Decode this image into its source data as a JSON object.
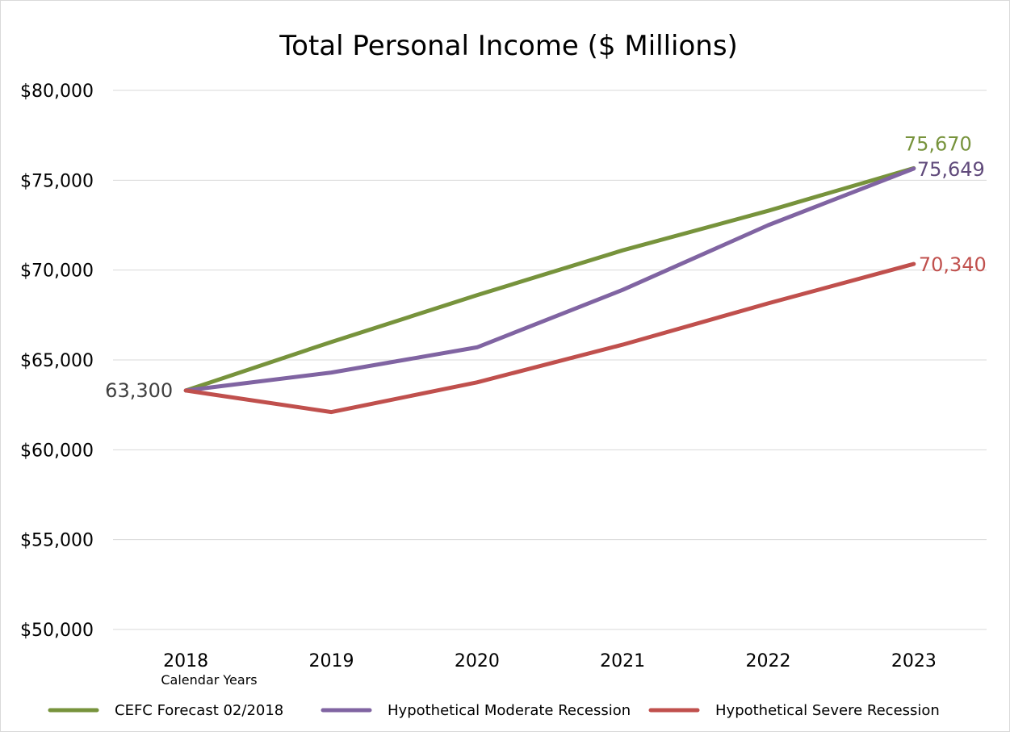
{
  "chart_data": {
    "type": "line",
    "title": "Total Personal Income ($ Millions)",
    "xlabel": "Calendar Years",
    "ylabel": "",
    "x": [
      "2018",
      "2019",
      "2020",
      "2021",
      "2022",
      "2023"
    ],
    "ylim": [
      50000,
      80000
    ],
    "yticks": [
      50000,
      55000,
      60000,
      65000,
      70000,
      75000,
      80000
    ],
    "ytick_labels": [
      "$50,000",
      "$55,000",
      "$60,000",
      "$65,000",
      "$70,000",
      "$75,000",
      "$80,000"
    ],
    "grid": true,
    "legend_position": "bottom",
    "series": [
      {
        "name": "CEFC Forecast 02/2018",
        "color": "#77933c",
        "values": [
          63300,
          66000,
          68600,
          71100,
          73300,
          75670
        ]
      },
      {
        "name": "Hypothetical Moderate Recession",
        "color": "#8064a2",
        "values": [
          63300,
          64300,
          65700,
          68900,
          72500,
          75649
        ]
      },
      {
        "name": "Hypothetical Severe Recession",
        "color": "#c0504d",
        "values": [
          63300,
          62100,
          63750,
          65850,
          68150,
          70340
        ]
      }
    ],
    "annotations": [
      {
        "text": "63,300",
        "x": "2018",
        "value": 63300,
        "color": "#404040"
      },
      {
        "text": "75,670",
        "x": "2023",
        "value": 75670,
        "color": "#77933c"
      },
      {
        "text": "75,649",
        "x": "2023",
        "value": 75649,
        "color": "#604a7b"
      },
      {
        "text": "70,340",
        "x": "2023",
        "value": 70340,
        "color": "#c0504d"
      }
    ]
  }
}
